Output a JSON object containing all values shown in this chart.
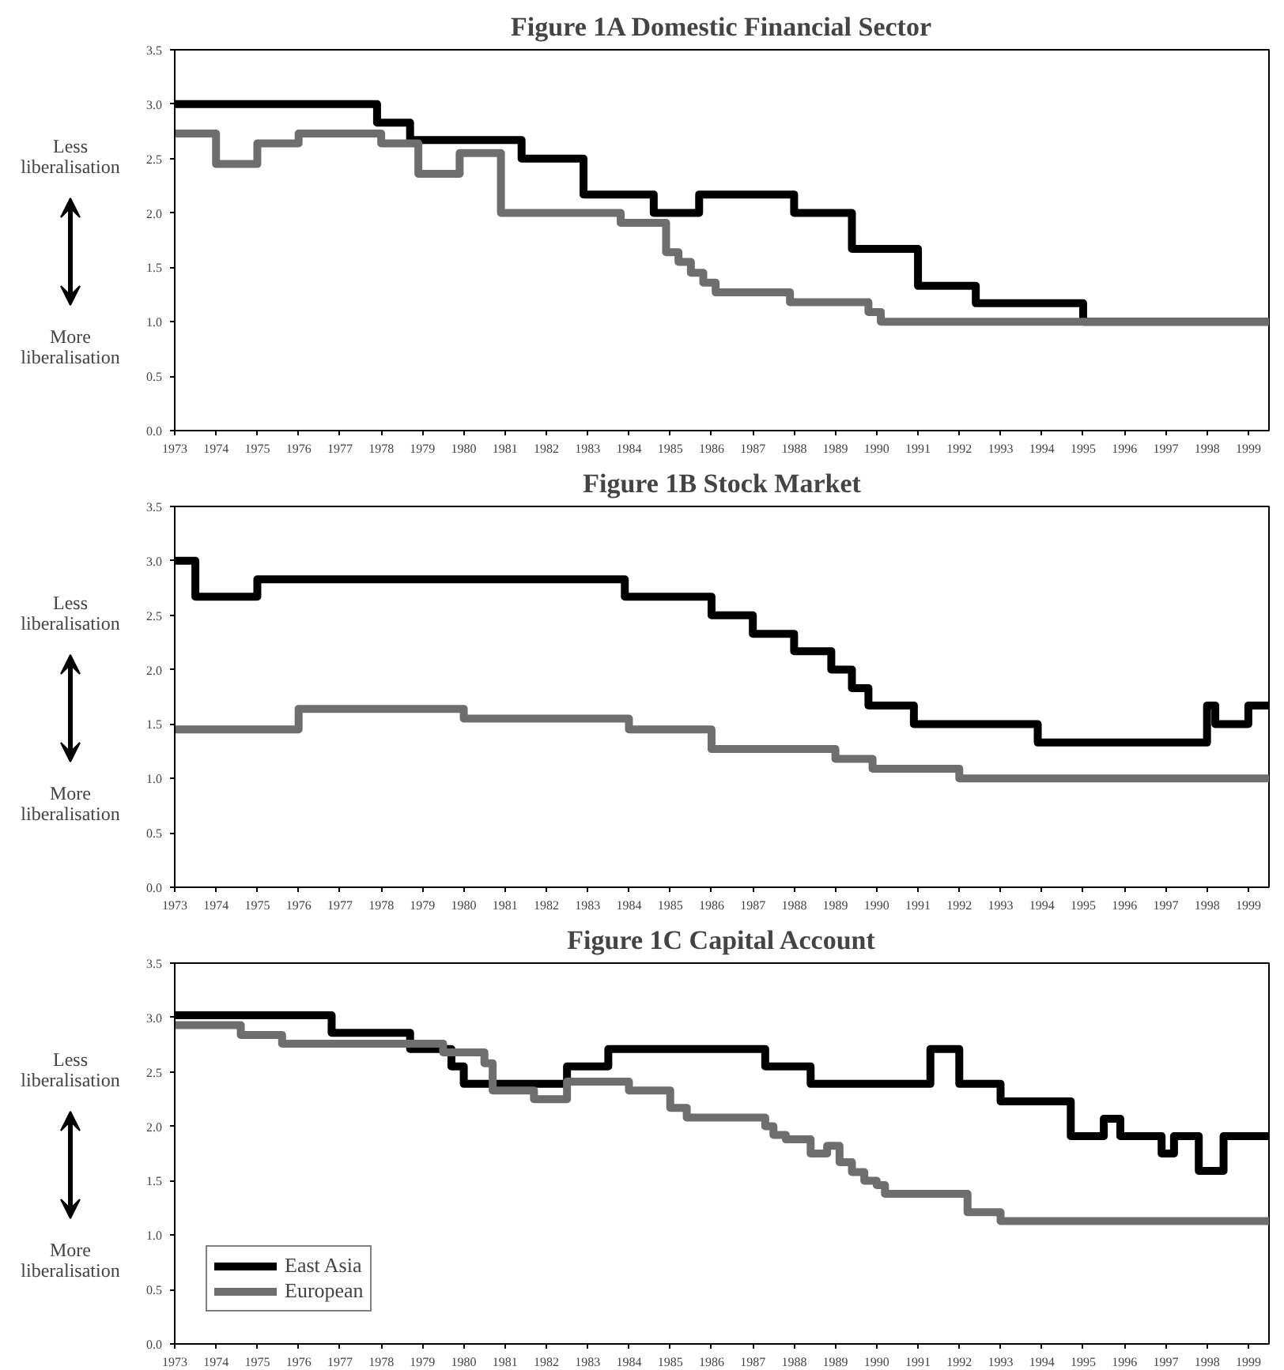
{
  "chart_data": [
    {
      "type": "step",
      "title": "Figure 1A Domestic Financial Sector",
      "annotations": [
        "Less liberalisation",
        "More liberalisation"
      ],
      "xlim": [
        1973,
        1999.5
      ],
      "xticks": [
        1973,
        1974,
        1975,
        1976,
        1977,
        1978,
        1979,
        1980,
        1981,
        1982,
        1983,
        1984,
        1985,
        1986,
        1987,
        1988,
        1989,
        1990,
        1991,
        1992,
        1993,
        1994,
        1995,
        1996,
        1997,
        1998,
        1999
      ],
      "ylim": [
        0,
        3.5
      ],
      "yticks": [
        {
          "value": 0,
          "label": "0.0"
        },
        {
          "value": 0.5,
          "label": "0.5"
        },
        {
          "value": 1,
          "label": "1.0"
        },
        {
          "value": 1.5,
          "label": "1.5"
        },
        {
          "value": 2,
          "label": "2.0"
        },
        {
          "value": 2.5,
          "label": "2.5"
        },
        {
          "value": 3,
          "label": "3.0"
        },
        {
          "value": 3.5,
          "label": "3.5"
        }
      ],
      "grid": false,
      "legend": false,
      "series": [
        {
          "color": "#000000",
          "x": [
            1973,
            1977.9,
            1978.7,
            1981.4,
            1982.9,
            1984.6,
            1985.7,
            1988.0,
            1989.4,
            1991.0,
            1992.4,
            1995.0,
            1999.5
          ],
          "values": [
            3.0,
            2.83,
            2.67,
            2.5,
            2.17,
            2.0,
            2.17,
            2.0,
            1.67,
            1.33,
            1.17,
            1.0,
            1.0
          ]
        },
        {
          "color": "#6e6e6e",
          "x": [
            1973,
            1974.0,
            1975.0,
            1976.0,
            1978.0,
            1978.9,
            1979.9,
            1980.9,
            1983.8,
            1984.9,
            1985.2,
            1985.5,
            1985.8,
            1986.1,
            1987.9,
            1989.8,
            1990.1,
            1999.5
          ],
          "values": [
            2.73,
            2.45,
            2.64,
            2.73,
            2.64,
            2.36,
            2.55,
            2.0,
            1.91,
            1.64,
            1.55,
            1.45,
            1.36,
            1.27,
            1.18,
            1.09,
            1.0,
            1.0
          ]
        }
      ]
    },
    {
      "type": "step",
      "title": "Figure 1B Stock Market",
      "annotations": [
        "Less liberalisation",
        "More liberalisation"
      ],
      "xlim": [
        1973,
        1999.5
      ],
      "xticks": [
        1973,
        1974,
        1975,
        1976,
        1977,
        1978,
        1979,
        1980,
        1981,
        1982,
        1983,
        1984,
        1985,
        1986,
        1987,
        1988,
        1989,
        1990,
        1991,
        1992,
        1993,
        1994,
        1995,
        1996,
        1997,
        1998,
        1999
      ],
      "ylim": [
        0,
        3.5
      ],
      "yticks": [
        {
          "value": 0,
          "label": "0.0"
        },
        {
          "value": 0.5,
          "label": "0.5"
        },
        {
          "value": 1,
          "label": "1.0"
        },
        {
          "value": 1.5,
          "label": "1.5"
        },
        {
          "value": 2,
          "label": "2.0"
        },
        {
          "value": 2.5,
          "label": "2.5"
        },
        {
          "value": 3,
          "label": "3.0"
        },
        {
          "value": 3.5,
          "label": "3.5"
        }
      ],
      "grid": false,
      "legend": false,
      "series": [
        {
          "color": "#000000",
          "x": [
            1973,
            1973.5,
            1975.0,
            1983.9,
            1986.0,
            1987.0,
            1988.0,
            1988.9,
            1989.4,
            1989.8,
            1990.9,
            1993.9,
            1998.0,
            1998.2,
            1999.0,
            1999.5
          ],
          "values": [
            3.0,
            2.67,
            2.83,
            2.67,
            2.5,
            2.33,
            2.17,
            2.0,
            1.83,
            1.67,
            1.5,
            1.33,
            1.67,
            1.5,
            1.67,
            1.67
          ]
        },
        {
          "color": "#6e6e6e",
          "x": [
            1973,
            1976.0,
            1980.0,
            1984.0,
            1986.0,
            1989.0,
            1989.9,
            1992.0,
            1999.5
          ],
          "values": [
            1.45,
            1.64,
            1.55,
            1.45,
            1.27,
            1.18,
            1.09,
            1.0,
            1.0
          ]
        }
      ]
    },
    {
      "type": "step",
      "title": "Figure 1C Capital Account",
      "annotations": [
        "Less liberalisation",
        "More liberalisation"
      ],
      "xlim": [
        1973,
        1999.5
      ],
      "xticks": [
        1973,
        1974,
        1975,
        1976,
        1977,
        1978,
        1979,
        1980,
        1981,
        1982,
        1983,
        1984,
        1985,
        1986,
        1987,
        1988,
        1989,
        1990,
        1991,
        1992,
        1993,
        1994,
        1995,
        1996,
        1997,
        1998,
        1999
      ],
      "ylim": [
        0,
        3.5
      ],
      "yticks": [
        {
          "value": 0,
          "label": "0.0"
        },
        {
          "value": 0.5,
          "label": "0.5"
        },
        {
          "value": 1,
          "label": "1.0"
        },
        {
          "value": 1.5,
          "label": "1.5"
        },
        {
          "value": 2,
          "label": "2.0"
        },
        {
          "value": 2.5,
          "label": "2.5"
        },
        {
          "value": 3,
          "label": "3.0"
        },
        {
          "value": 3.5,
          "label": "3.5"
        }
      ],
      "grid": false,
      "legend": "bottom left",
      "series": [
        {
          "name": "East Asia",
          "color": "#000000",
          "x": [
            1973,
            1976.8,
            1978.7,
            1979.7,
            1980.0,
            1982.5,
            1983.5,
            1987.3,
            1988.4,
            1991.3,
            1992.0,
            1993.0,
            1994.7,
            1995.5,
            1995.9,
            1996.9,
            1997.2,
            1997.8,
            1998.4,
            1999.5
          ],
          "values": [
            3.02,
            2.86,
            2.71,
            2.55,
            2.39,
            2.55,
            2.71,
            2.55,
            2.39,
            2.71,
            2.39,
            2.23,
            1.91,
            2.07,
            1.91,
            1.75,
            1.91,
            1.59,
            1.91,
            1.91
          ]
        },
        {
          "name": "European",
          "color": "#6e6e6e",
          "x": [
            1973,
            1974.6,
            1975.6,
            1979.5,
            1980.5,
            1980.7,
            1981.7,
            1982.5,
            1984.0,
            1985.0,
            1985.4,
            1987.3,
            1987.5,
            1987.8,
            1988.4,
            1988.8,
            1989.1,
            1989.4,
            1989.7,
            1990.0,
            1990.2,
            1992.2,
            1993.0,
            1999.5
          ],
          "values": [
            2.93,
            2.84,
            2.76,
            2.68,
            2.58,
            2.33,
            2.25,
            2.41,
            2.33,
            2.17,
            2.08,
            2.0,
            1.92,
            1.88,
            1.75,
            1.82,
            1.67,
            1.58,
            1.5,
            1.46,
            1.38,
            1.21,
            1.13,
            1.13
          ]
        }
      ]
    }
  ]
}
